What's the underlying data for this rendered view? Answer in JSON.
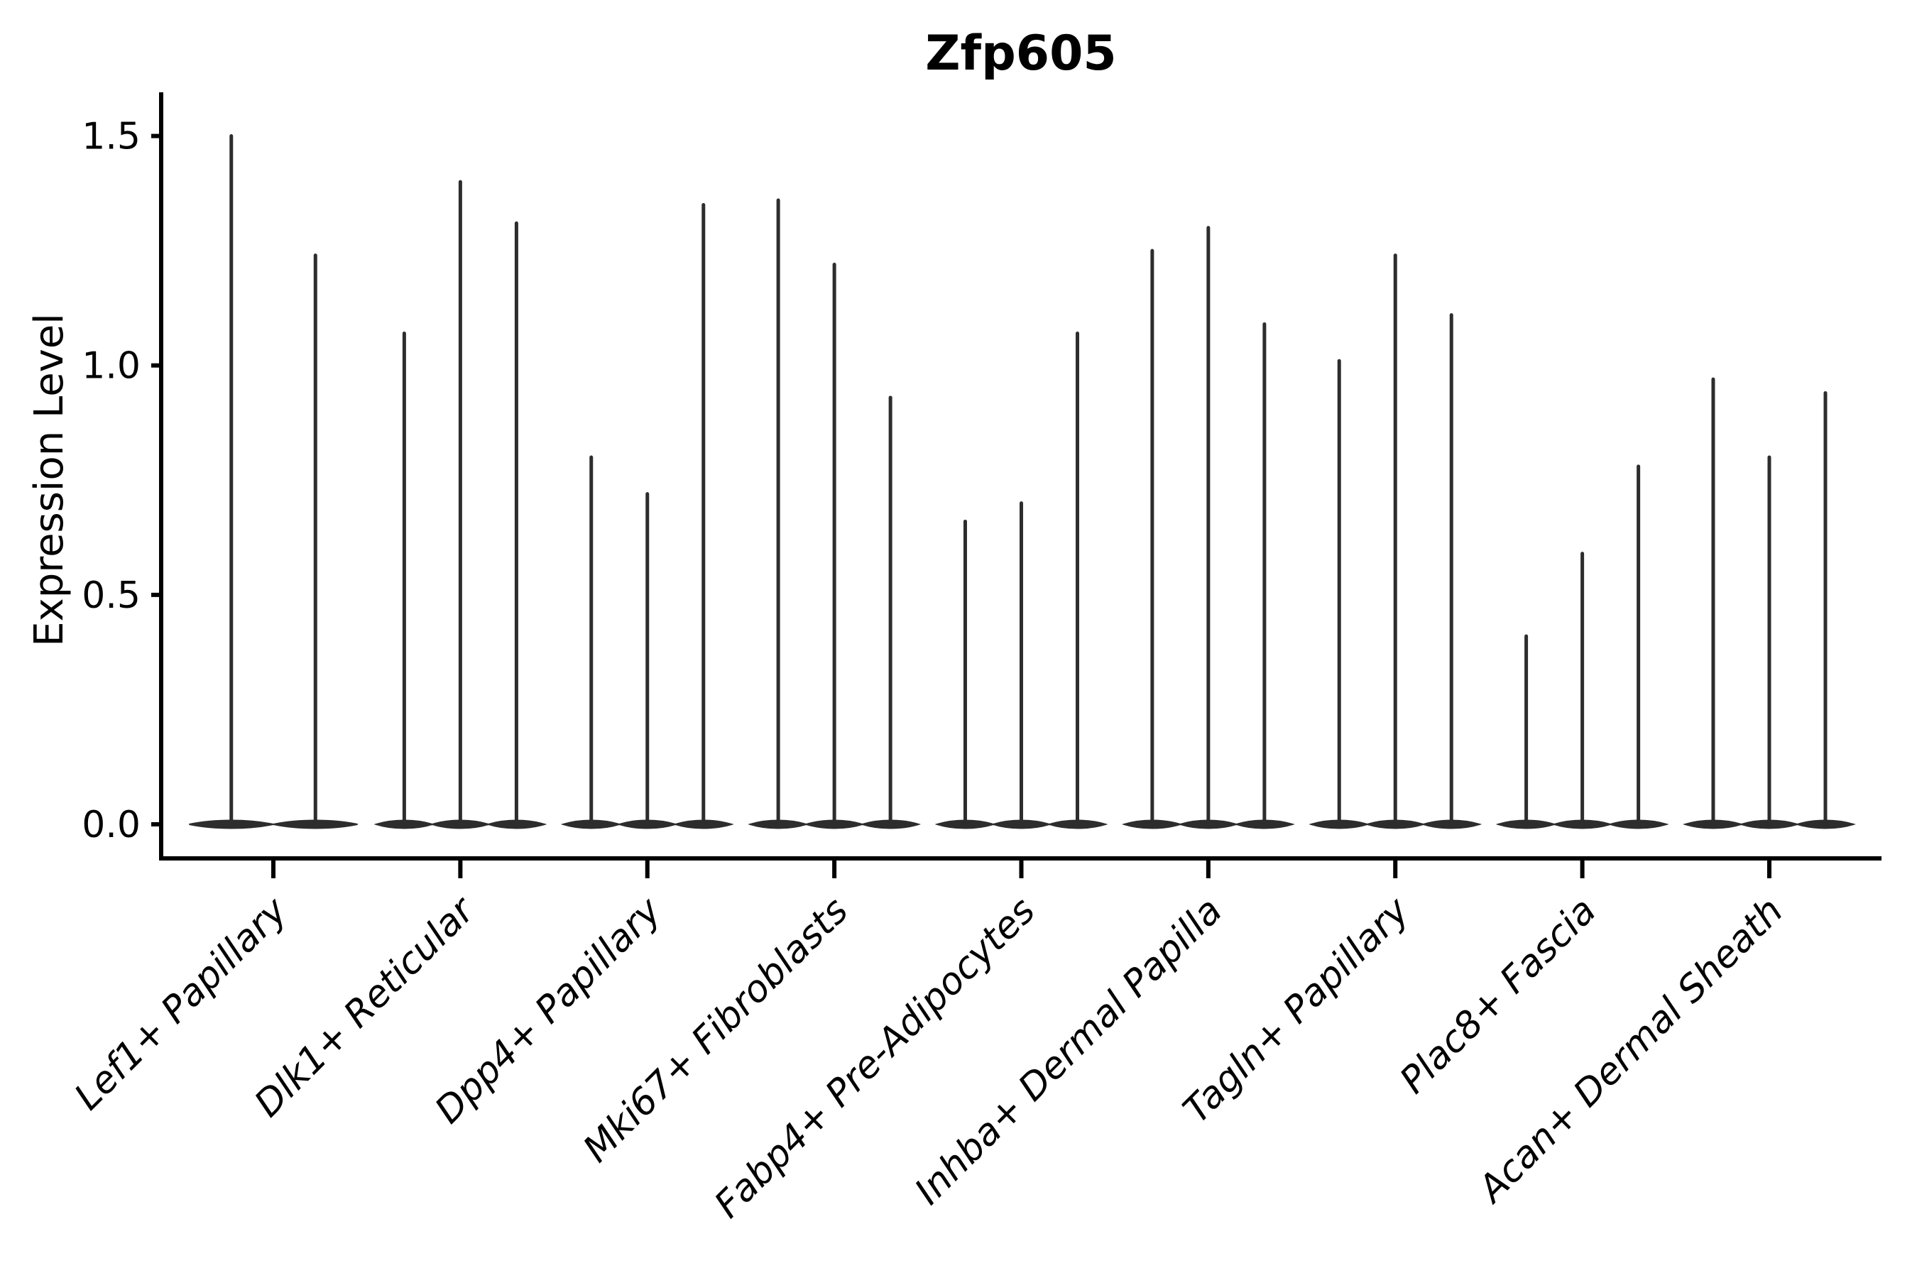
{
  "title": "Zfp605",
  "axis": {
    "ylabel": "Expression Level",
    "yticks": [
      "0.0",
      "0.5",
      "1.0",
      "1.5"
    ],
    "ytick_values": [
      0.0,
      0.5,
      1.0,
      1.5
    ]
  },
  "colors": {
    "violin": "#2d2d2d",
    "axis": "#000000",
    "background": "#ffffff"
  },
  "chart_data": {
    "type": "violin",
    "title": "Zfp605",
    "xlabel": "",
    "ylabel": "Expression Level",
    "ylim": [
      0,
      1.55
    ],
    "yticks": [
      0.0,
      0.5,
      1.0,
      1.5
    ],
    "grid": false,
    "legend": "none",
    "description": "Seurat-style single-gene violin plot; nearly all density sits at expression 0 (wide flat base) with one thin spike per violin reaching the maximum expression value.",
    "categories": [
      "Lef1+ Papillary",
      "Dlk1+ Reticular",
      "Dpp4+ Papillary",
      "Mki67+ Fibroblasts",
      "Fabp4+ Pre-Adipocytes",
      "Inhba+ Dermal Papilla",
      "Tagln+ Papillary",
      "Plac8+ Fascia",
      "Acan+ Dermal Sheath"
    ],
    "series": [
      {
        "category": "Lef1+ Papillary",
        "violin_maxima": [
          1.5,
          1.24
        ]
      },
      {
        "category": "Dlk1+ Reticular",
        "violin_maxima": [
          1.07,
          1.4,
          1.31
        ]
      },
      {
        "category": "Dpp4+ Papillary",
        "violin_maxima": [
          0.8,
          0.72,
          1.35
        ]
      },
      {
        "category": "Mki67+ Fibroblasts",
        "violin_maxima": [
          1.36,
          1.22,
          0.93
        ]
      },
      {
        "category": "Fabp4+ Pre-Adipocytes",
        "violin_maxima": [
          0.66,
          0.7,
          1.07
        ]
      },
      {
        "category": "Inhba+ Dermal Papilla",
        "violin_maxima": [
          1.25,
          1.3,
          1.09
        ]
      },
      {
        "category": "Tagln+ Papillary",
        "violin_maxima": [
          1.01,
          1.24,
          1.11
        ]
      },
      {
        "category": "Plac8+ Fascia",
        "violin_maxima": [
          0.41,
          0.59,
          0.78
        ]
      },
      {
        "category": "Acan+ Dermal Sheath",
        "violin_maxima": [
          0.97,
          0.8,
          0.94
        ]
      }
    ]
  }
}
